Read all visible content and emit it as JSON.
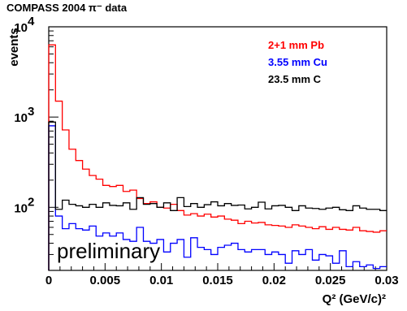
{
  "chart_data": {
    "type": "line",
    "step": true,
    "title": "COMPASS 2004 π⁻ data",
    "ylabel": "events",
    "xlabel": "Q² (GeV/c)²",
    "annotation": "preliminary",
    "xlim": [
      0,
      0.03
    ],
    "ylim": [
      20,
      10000
    ],
    "yscale": "log",
    "grid": false,
    "legend_position": "top-right",
    "x_ticks": [
      "0",
      "0.005",
      "0.01",
      "0.015",
      "0.02",
      "0.025",
      "0.03"
    ],
    "y_ticks": [
      "10",
      "10",
      "10"
    ],
    "y_tick_exponents": [
      "2",
      "3",
      "4"
    ],
    "bin_width": 0.0006,
    "series": [
      {
        "name": "2+1 mm Pb",
        "color": "#ff0000",
        "values": [
          6300,
          1500,
          720,
          440,
          330,
          265,
          225,
          205,
          175,
          170,
          175,
          150,
          155,
          125,
          110,
          115,
          100,
          98,
          108,
          92,
          82,
          85,
          80,
          84,
          78,
          80,
          74,
          72,
          66,
          70,
          67,
          68,
          64,
          63,
          62,
          60,
          64,
          62,
          60,
          58,
          61,
          57,
          60,
          57,
          56,
          60,
          55,
          54,
          53,
          55
        ]
      },
      {
        "name": "3.55 mm  Cu",
        "color": "#0000ff",
        "values": [
          800,
          80,
          58,
          66,
          58,
          56,
          62,
          48,
          52,
          48,
          52,
          44,
          42,
          60,
          42,
          40,
          44,
          32,
          40,
          44,
          28,
          46,
          36,
          34,
          30,
          36,
          38,
          40,
          34,
          32,
          34,
          34,
          30,
          32,
          30,
          24,
          33,
          30,
          34,
          26,
          30,
          29,
          24,
          33,
          22,
          25,
          22,
          23,
          21,
          22
        ]
      },
      {
        "name": "23.5 mm C",
        "color": "#000000",
        "values": [
          880,
          95,
          120,
          108,
          104,
          100,
          108,
          100,
          112,
          105,
          104,
          112,
          95,
          128,
          108,
          110,
          100,
          112,
          92,
          128,
          102,
          110,
          100,
          107,
          115,
          104,
          110,
          105,
          106,
          96,
          100,
          114,
          96,
          104,
          105,
          100,
          92,
          104,
          98,
          97,
          95,
          98,
          100,
          94,
          92,
          104,
          98,
          95,
          95,
          92
        ]
      }
    ]
  }
}
